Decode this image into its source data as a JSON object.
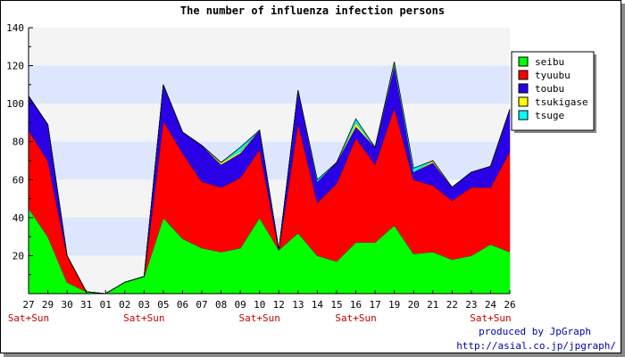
{
  "chart_data": {
    "type": "area",
    "stacked": true,
    "title": "The number of influenza infection persons",
    "x": [
      "27",
      "29",
      "30",
      "31",
      "01",
      "02",
      "03",
      "05",
      "06",
      "07",
      "08",
      "09",
      "10",
      "12",
      "13",
      "14",
      "15",
      "16",
      "17",
      "19",
      "20",
      "21",
      "22",
      "23",
      "24",
      "26"
    ],
    "week_marks": [
      {
        "at": "27",
        "label": "Sat+Sun"
      },
      {
        "at": "03",
        "label": "Sat+Sun"
      },
      {
        "at": "10",
        "label": "Sat+Sun"
      },
      {
        "at": "16",
        "label": "Sat+Sun"
      },
      {
        "at": "24",
        "label": "Sat+Sun"
      }
    ],
    "ylim": [
      0,
      140
    ],
    "yticks": [
      20,
      40,
      60,
      80,
      100,
      120,
      140
    ],
    "legend_position": "right",
    "series": [
      {
        "name": "seibu",
        "color": "#00ff00",
        "values": [
          45,
          30,
          6,
          1,
          0,
          6,
          9,
          40,
          29,
          24,
          22,
          24,
          40,
          23,
          32,
          20,
          17,
          27,
          27,
          36,
          21,
          22,
          18,
          20,
          26,
          22
        ]
      },
      {
        "name": "tyuubu",
        "color": "#ff0000",
        "values": [
          41,
          40,
          14,
          0,
          0,
          0,
          0,
          51,
          45,
          35,
          34,
          37,
          36,
          0,
          58,
          28,
          41,
          55,
          41,
          62,
          39,
          35,
          31,
          36,
          30,
          53
        ]
      },
      {
        "name": "toubu",
        "color": "#2a00e6",
        "values": [
          18,
          19,
          0,
          0,
          0,
          0,
          0,
          19,
          11,
          19,
          12,
          13,
          10,
          0,
          17,
          11,
          11,
          6,
          9,
          22,
          4,
          12,
          7,
          8,
          11,
          22
        ]
      },
      {
        "name": "tsukigase",
        "color": "#ffff00",
        "values": [
          0,
          0,
          0,
          0,
          0,
          0,
          0,
          0,
          0,
          0,
          1,
          1,
          0,
          0,
          0,
          0,
          0,
          2,
          0,
          1,
          0,
          1,
          0,
          0,
          0,
          0
        ]
      },
      {
        "name": "tsuge",
        "color": "#00ffff",
        "values": [
          0,
          0,
          0,
          0,
          0,
          0,
          0,
          0,
          0,
          0,
          0,
          2,
          0,
          0,
          0,
          1,
          0,
          2,
          0,
          1,
          2,
          0,
          0,
          0,
          0,
          0
        ]
      }
    ],
    "credits": [
      "produced by JpGraph",
      "http://asial.co.jp/jpgraph/"
    ]
  }
}
